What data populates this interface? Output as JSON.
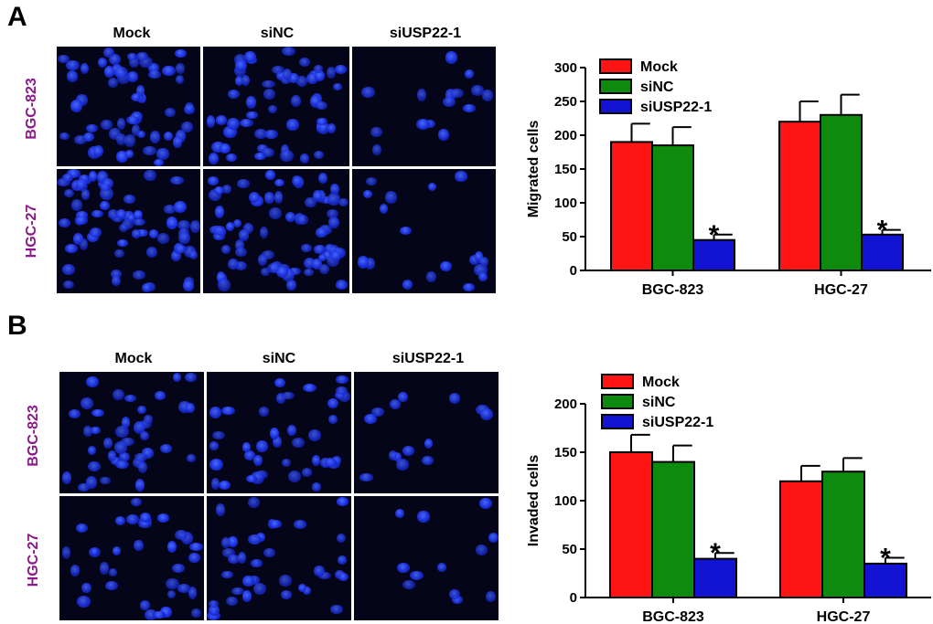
{
  "figure": {
    "panel_A_letter": "A",
    "panel_B_letter": "B",
    "micro_columns": [
      "Mock",
      "siNC",
      "siUSP22-1"
    ],
    "micro_rows": [
      "BGC-823",
      "HGC-27"
    ]
  },
  "colors": {
    "mock": "#ff1414",
    "sinc": "#0e8a0e",
    "siusp": "#1313d4",
    "row_label": "#8b1a8b",
    "cell_nucleus": "#1a2ee0"
  },
  "chart_data": [
    {
      "type": "bar",
      "categories": [
        "BGC-823",
        "HGC-27"
      ],
      "series": [
        {
          "name": "Mock",
          "values": [
            190,
            220
          ],
          "errors": [
            27,
            30
          ]
        },
        {
          "name": "siNC",
          "values": [
            185,
            230
          ],
          "errors": [
            27,
            30
          ]
        },
        {
          "name": "siUSP22-1",
          "values": [
            45,
            53
          ],
          "errors": [
            8,
            7
          ]
        }
      ],
      "significance": [
        "*",
        "*"
      ],
      "title": "",
      "xlabel": "",
      "ylabel": "Migrated cells",
      "ylim": [
        0,
        300
      ],
      "yticks": [
        "0",
        "50",
        "100",
        "150",
        "200",
        "250",
        "300"
      ],
      "legend_position": "top-left"
    },
    {
      "type": "bar",
      "categories": [
        "BGC-823",
        "HGC-27"
      ],
      "series": [
        {
          "name": "Mock",
          "values": [
            150,
            120
          ],
          "errors": [
            18,
            16
          ]
        },
        {
          "name": "siNC",
          "values": [
            140,
            130
          ],
          "errors": [
            17,
            14
          ]
        },
        {
          "name": "siUSP22-1",
          "values": [
            40,
            35
          ],
          "errors": [
            6,
            6
          ]
        }
      ],
      "significance": [
        "*",
        "*"
      ],
      "title": "",
      "xlabel": "",
      "ylabel": "Invaded cells",
      "ylim": [
        0,
        200
      ],
      "yticks": [
        "0",
        "50",
        "100",
        "150",
        "200"
      ],
      "legend_position": "top-left"
    }
  ]
}
